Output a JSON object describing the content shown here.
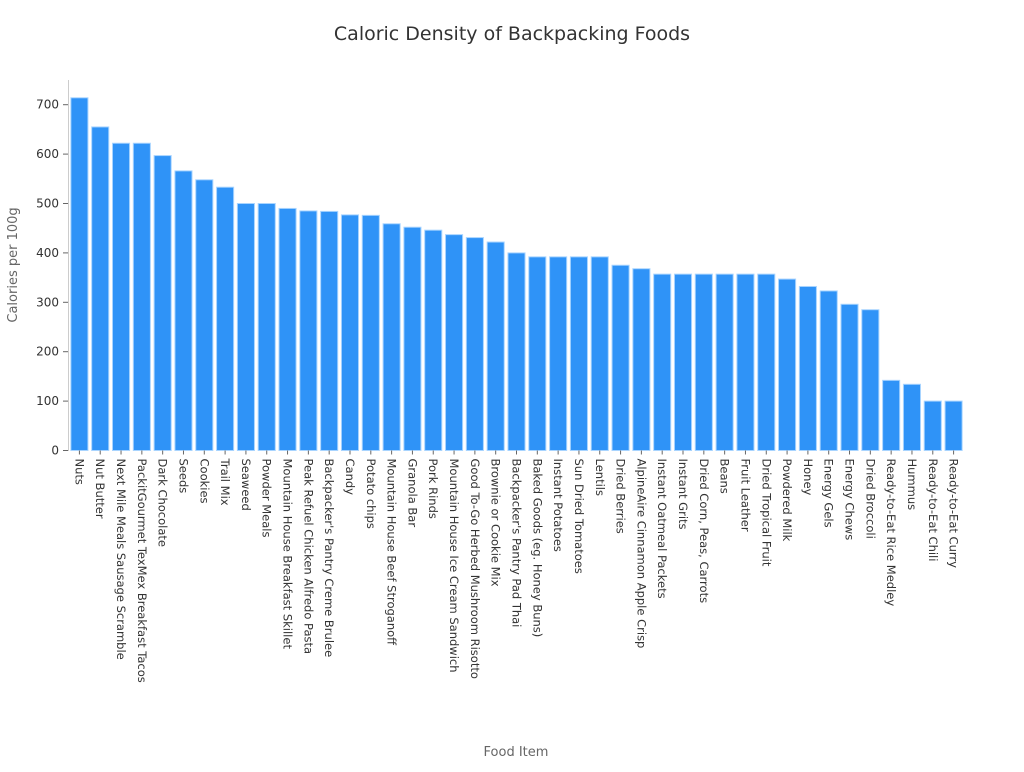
{
  "chart_data": {
    "type": "bar",
    "title": "Caloric Density of Backpacking Foods",
    "xlabel": "Food Item",
    "ylabel": "Calories per 100g",
    "ylim": [
      0,
      750
    ],
    "yticks": [
      0,
      100,
      200,
      300,
      400,
      500,
      600,
      700
    ],
    "grid": false,
    "bar_color": "#2f93f7",
    "bar_edge_color": "#a8d4ff",
    "categories": [
      "Nuts",
      "Nut Butter",
      "Next Mile Meals\nSausage Scramble",
      "PackitGourmet TexMex\nBreakfast Tacos",
      "Dark Chocolate",
      "Seeds",
      "Cookies",
      "Trail Mix",
      "Seaweed",
      "Powder Meals",
      "Mountain House\nBreakfast Skillet",
      "Peak Refuel Chicken\nAlfredo Pasta",
      "Backpacker's Pantry\nCreme Brulee",
      "Candy",
      "Potato chips",
      "Mountain House\nBeef Stroganoff",
      "Granola Bar",
      "Pork Rinds",
      "Mountain House Ice\nCream Sandwich",
      "Good To-Go Herbed\nMushroom Risotto",
      "Brownie or\nCookie Mix",
      "Backpacker's Pantry\nPad Thai",
      "Baked Goods\n(eg. Honey Buns)",
      "Instant Potatoes",
      "Sun Dried Tomatoes",
      "Lentils",
      "Dried Berries",
      "AlpineAire Cinnamon\nApple Crisp",
      "Instant Oatmeal\nPackets",
      "Instant Grits",
      "Dried Corn, Peas,\nCarrots",
      "Beans",
      "Fruit Leather",
      "Dried Tropical Fruit",
      "Powdered Milk",
      "Honey",
      "Energy Gels",
      "Energy Chews",
      "Dried Broccoli",
      "Ready-to-Eat\nRice Medley",
      "Hummus",
      "Ready-to-Eat Chili",
      "Ready-to-Eat Curry"
    ],
    "values": [
      714,
      655,
      622,
      622,
      597,
      566,
      548,
      533,
      500,
      500,
      490,
      485,
      484,
      477,
      476,
      459,
      452,
      446,
      437,
      431,
      422,
      400,
      392,
      392,
      392,
      392,
      375,
      368,
      357,
      357,
      357,
      357,
      357,
      357,
      347,
      332,
      323,
      296,
      285,
      142,
      134,
      100,
      100
    ]
  }
}
